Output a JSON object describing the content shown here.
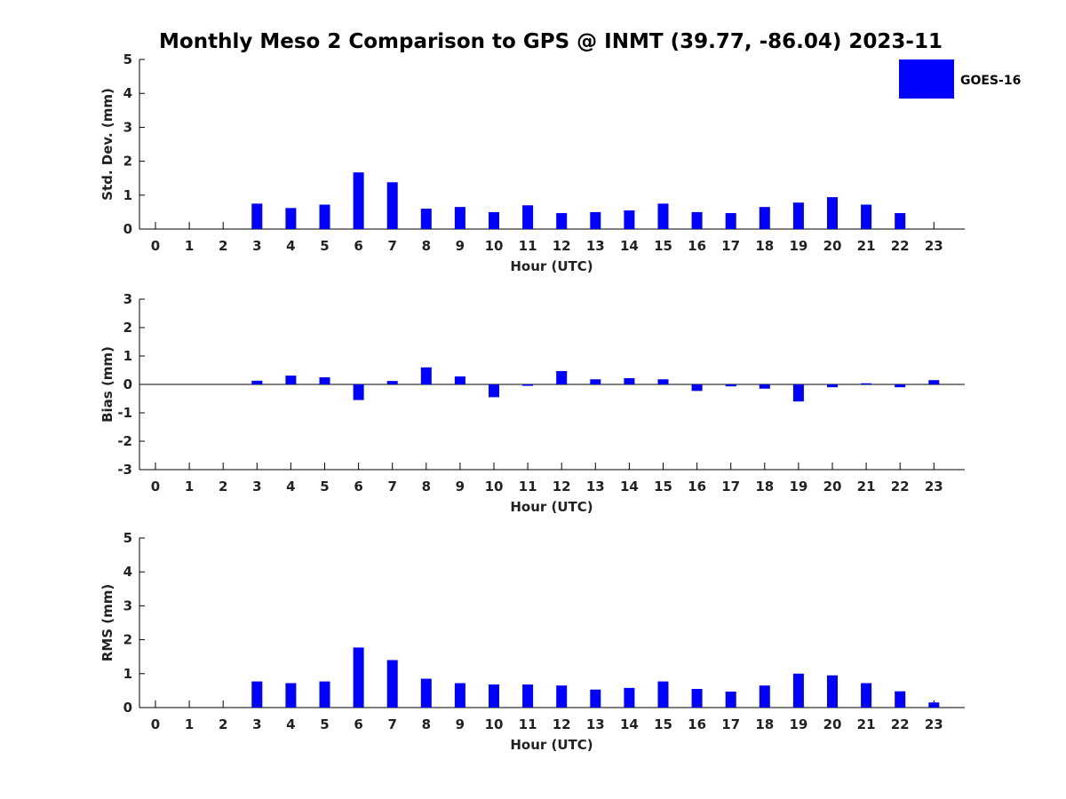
{
  "figure_title": "Monthly Meso 2 Comparison to GPS @ INMT (39.77, -86.04) 2023-11",
  "legend": {
    "label": "GOES-16",
    "color": "#0000ff"
  },
  "chart_data": [
    {
      "type": "bar",
      "id": "std",
      "title": "Monthly Meso 2 Comparison to GPS @ INMT (39.77, -86.04) 2023-11",
      "xlabel": "Hour (UTC)",
      "ylabel": "Std. Dev. (mm)",
      "ylim": [
        0,
        5
      ],
      "yticks": [
        "0",
        "1",
        "2",
        "3",
        "4",
        "5"
      ],
      "categories": [
        "0",
        "1",
        "2",
        "3",
        "4",
        "5",
        "6",
        "7",
        "8",
        "9",
        "10",
        "11",
        "12",
        "13",
        "14",
        "15",
        "16",
        "17",
        "18",
        "19",
        "20",
        "21",
        "22",
        "23"
      ],
      "series": [
        {
          "name": "GOES-16",
          "color": "#0000ff",
          "values": [
            0,
            0,
            0,
            0.75,
            0.62,
            0.72,
            1.67,
            1.38,
            0.6,
            0.65,
            0.5,
            0.7,
            0.47,
            0.5,
            0.55,
            0.75,
            0.5,
            0.47,
            0.65,
            0.78,
            0.94,
            0.72,
            0.47,
            0
          ]
        }
      ]
    },
    {
      "type": "bar",
      "id": "bias",
      "xlabel": "Hour (UTC)",
      "ylabel": "Bias (mm)",
      "ylim": [
        -3,
        3
      ],
      "yticks": [
        "-3",
        "-2",
        "-1",
        "0",
        "1",
        "2",
        "3"
      ],
      "categories": [
        "0",
        "1",
        "2",
        "3",
        "4",
        "5",
        "6",
        "7",
        "8",
        "9",
        "10",
        "11",
        "12",
        "13",
        "14",
        "15",
        "16",
        "17",
        "18",
        "19",
        "20",
        "21",
        "22",
        "23"
      ],
      "series": [
        {
          "name": "GOES-16",
          "color": "#0000ff",
          "values": [
            0,
            0,
            0,
            0.13,
            0.31,
            0.25,
            -0.55,
            0.12,
            0.6,
            0.28,
            -0.45,
            -0.05,
            0.47,
            0.18,
            0.22,
            0.18,
            -0.23,
            -0.07,
            -0.15,
            -0.6,
            -0.1,
            0.04,
            -0.1,
            0.15
          ]
        }
      ]
    },
    {
      "type": "bar",
      "id": "rms",
      "xlabel": "Hour (UTC)",
      "ylabel": "RMS (mm)",
      "ylim": [
        0,
        5
      ],
      "yticks": [
        "0",
        "1",
        "2",
        "3",
        "4",
        "5"
      ],
      "categories": [
        "0",
        "1",
        "2",
        "3",
        "4",
        "5",
        "6",
        "7",
        "8",
        "9",
        "10",
        "11",
        "12",
        "13",
        "14",
        "15",
        "16",
        "17",
        "18",
        "19",
        "20",
        "21",
        "22",
        "23"
      ],
      "series": [
        {
          "name": "GOES-16",
          "color": "#0000ff",
          "values": [
            0,
            0,
            0,
            0.77,
            0.72,
            0.77,
            1.77,
            1.4,
            0.85,
            0.72,
            0.68,
            0.68,
            0.65,
            0.53,
            0.58,
            0.77,
            0.55,
            0.47,
            0.65,
            1.0,
            0.95,
            0.72,
            0.48,
            0.15
          ]
        }
      ]
    }
  ]
}
